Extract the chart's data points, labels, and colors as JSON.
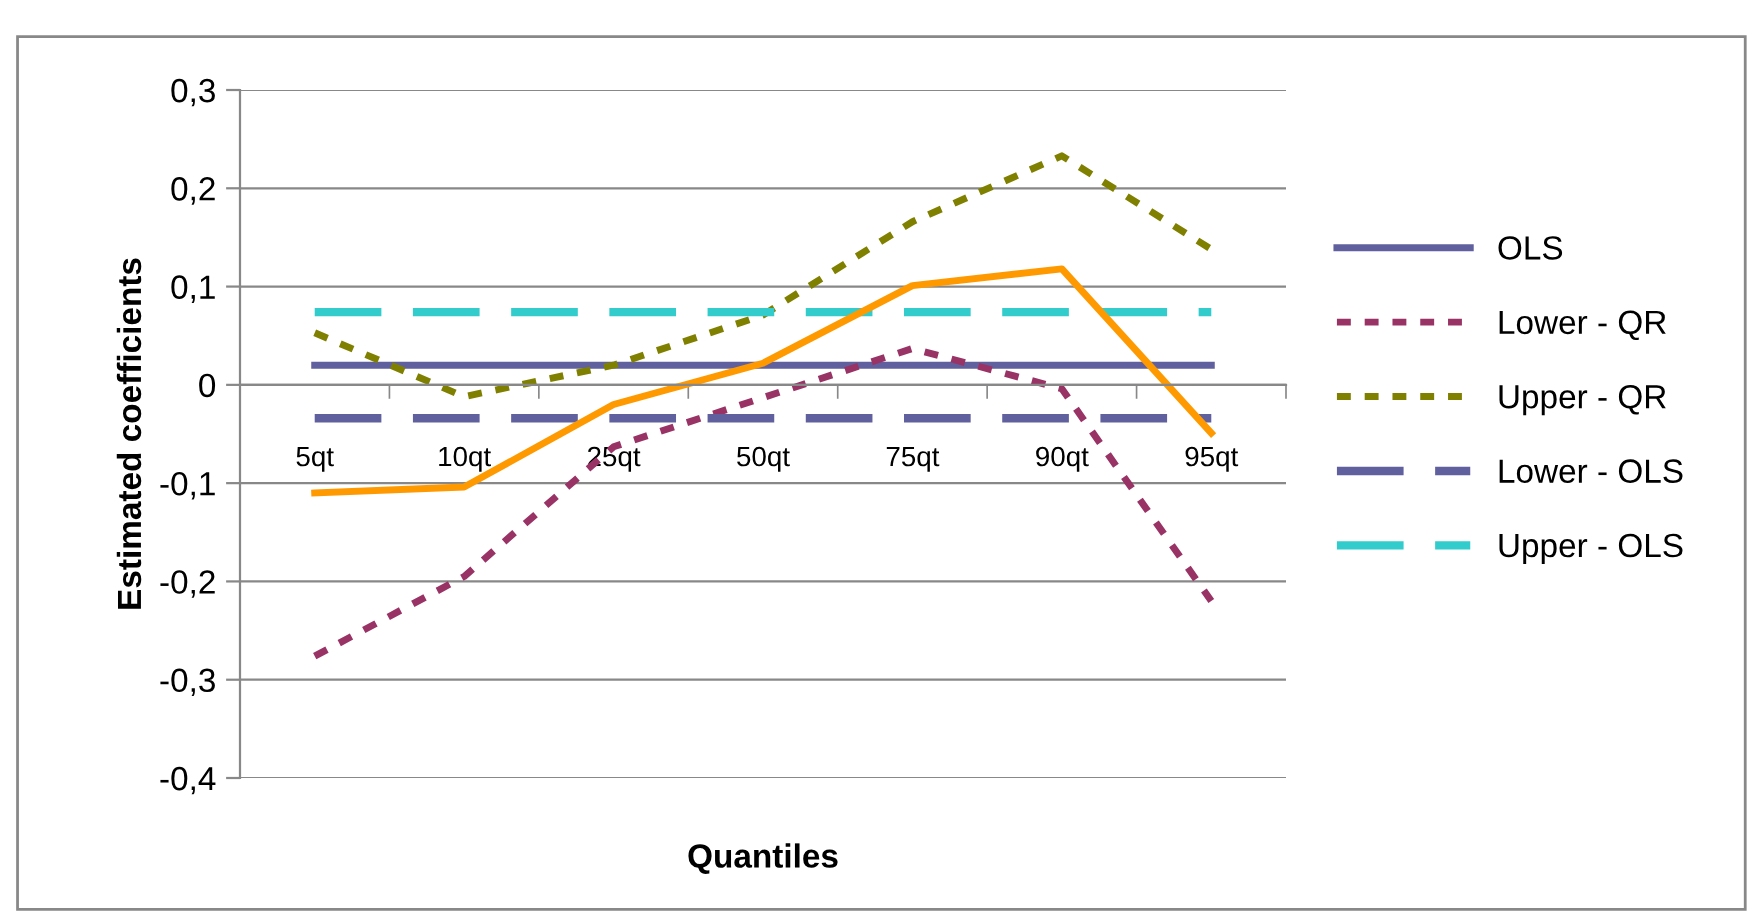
{
  "chart_data": {
    "type": "line",
    "xlabel": "Quantiles",
    "ylabel": "Estimated coefficients",
    "categories": [
      "5qt",
      "10qt",
      "25qt",
      "50qt",
      "75qt",
      "90qt",
      "95qt"
    ],
    "series": [
      {
        "name": "OLS",
        "color": "#60609e",
        "line_style": "solid",
        "values": [
          0.02,
          0.02,
          0.02,
          0.02,
          0.02,
          0.02,
          0.02
        ]
      },
      {
        "name": "Lower - QR",
        "color": "#993366",
        "line_style": "dotted",
        "values": [
          -0.276,
          -0.195,
          -0.063,
          -0.013,
          0.037,
          -0.004,
          -0.22
        ]
      },
      {
        "name": "Upper - QR",
        "color": "#808000",
        "line_style": "dotted",
        "values": [
          0.053,
          -0.012,
          0.02,
          0.071,
          0.166,
          0.233,
          0.138
        ]
      },
      {
        "name": "Lower - OLS",
        "color": "#60609e",
        "line_style": "dashed",
        "values": [
          -0.034,
          -0.034,
          -0.034,
          -0.034,
          -0.034,
          -0.034,
          -0.034
        ]
      },
      {
        "name": "Upper - OLS",
        "color": "#33cccc",
        "line_style": "dashed",
        "values": [
          0.074,
          0.074,
          0.074,
          0.074,
          0.074,
          0.074,
          0.074
        ]
      },
      {
        "color": "#ff9900",
        "line_style": "solid",
        "values": [
          -0.11,
          -0.104,
          -0.02,
          0.022,
          0.101,
          0.118,
          -0.049
        ]
      }
    ],
    "ylim": [
      -0.4,
      0.3
    ],
    "yticks": [
      {
        "value": -0.4,
        "label": "-0,4"
      },
      {
        "value": -0.3,
        "label": "-0,3"
      },
      {
        "value": -0.2,
        "label": "-0,2"
      },
      {
        "value": -0.1,
        "label": "-0,1"
      },
      0,
      {
        "value": 0.1,
        "label": "0,1"
      },
      {
        "value": 0.2,
        "label": "0,2"
      },
      {
        "value": 0.3,
        "label": "0,3"
      }
    ],
    "grid": "y",
    "legend": "right",
    "marker": "none"
  }
}
